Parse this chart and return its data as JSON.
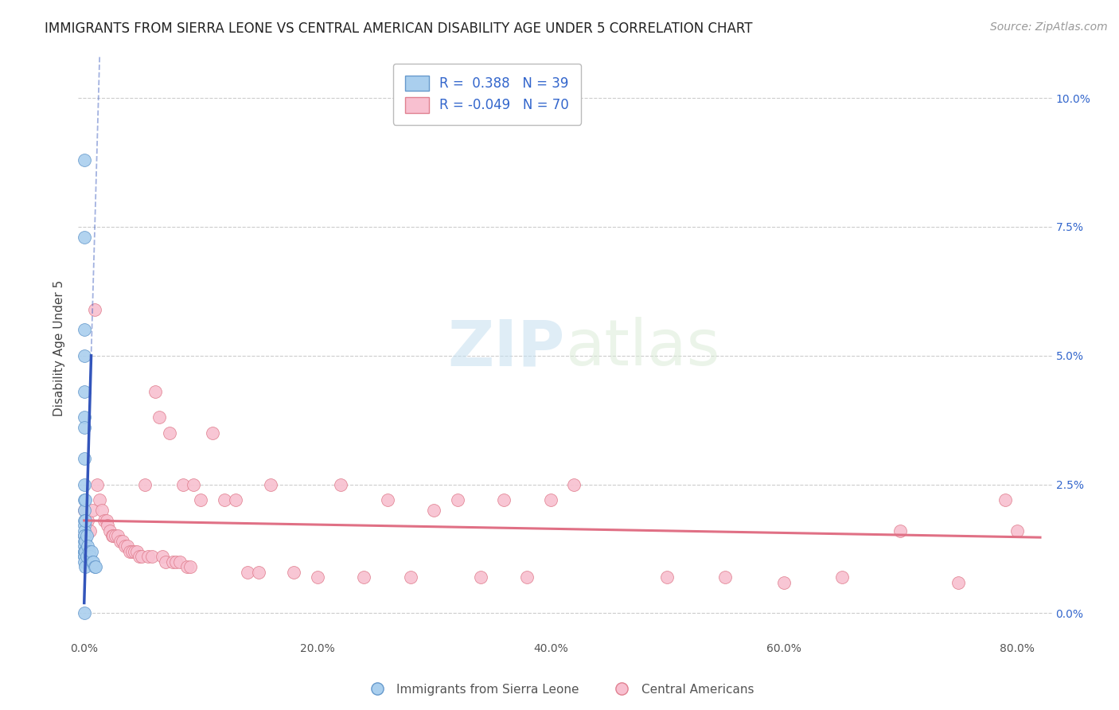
{
  "title": "IMMIGRANTS FROM SIERRA LEONE VS CENTRAL AMERICAN DISABILITY AGE UNDER 5 CORRELATION CHART",
  "source": "Source: ZipAtlas.com",
  "ylabel": "Disability Age Under 5",
  "xlim": [
    -0.005,
    0.83
  ],
  "ylim": [
    -0.005,
    0.108
  ],
  "blue_R": 0.388,
  "blue_N": 39,
  "pink_R": -0.049,
  "pink_N": 70,
  "legend1_label": "Immigrants from Sierra Leone",
  "legend2_label": "Central Americans",
  "background_color": "#ffffff",
  "grid_color": "#cccccc",
  "blue_color": "#aacfee",
  "blue_edge_color": "#6699cc",
  "blue_line_color": "#3355bb",
  "pink_color": "#f8c0d0",
  "pink_edge_color": "#e08090",
  "pink_line_color": "#e07085",
  "xtick_vals": [
    0.0,
    0.2,
    0.4,
    0.6,
    0.8
  ],
  "xtick_labels": [
    "0.0%",
    "20.0%",
    "40.0%",
    "60.0%",
    "80.0%"
  ],
  "ytick_vals": [
    0.0,
    0.025,
    0.05,
    0.075,
    0.1
  ],
  "ytick_labels": [
    "0.0%",
    "2.5%",
    "5.0%",
    "7.5%",
    "10.0%"
  ],
  "blue_scatter_x": [
    0.0,
    0.0,
    0.0,
    0.0,
    0.0,
    0.0,
    0.0,
    0.0,
    0.0,
    0.0,
    0.0,
    0.0,
    0.0,
    0.0,
    0.0,
    0.0,
    0.0,
    0.0,
    0.0,
    0.0,
    0.0,
    0.0,
    0.0,
    0.0,
    0.001,
    0.001,
    0.001,
    0.001,
    0.001,
    0.002,
    0.002,
    0.003,
    0.004,
    0.005,
    0.006,
    0.007,
    0.008,
    0.009,
    0.01
  ],
  "blue_scatter_y": [
    0.088,
    0.073,
    0.055,
    0.05,
    0.043,
    0.038,
    0.036,
    0.03,
    0.025,
    0.022,
    0.02,
    0.018,
    0.017,
    0.016,
    0.015,
    0.015,
    0.014,
    0.013,
    0.012,
    0.012,
    0.011,
    0.011,
    0.01,
    0.0,
    0.022,
    0.018,
    0.014,
    0.012,
    0.009,
    0.015,
    0.011,
    0.013,
    0.012,
    0.011,
    0.012,
    0.01,
    0.01,
    0.009,
    0.009
  ],
  "pink_scatter_x": [
    0.0,
    0.0,
    0.003,
    0.005,
    0.007,
    0.009,
    0.011,
    0.013,
    0.015,
    0.017,
    0.019,
    0.02,
    0.022,
    0.024,
    0.025,
    0.027,
    0.029,
    0.031,
    0.033,
    0.035,
    0.037,
    0.039,
    0.041,
    0.043,
    0.045,
    0.047,
    0.049,
    0.052,
    0.055,
    0.058,
    0.061,
    0.064,
    0.067,
    0.07,
    0.073,
    0.076,
    0.079,
    0.082,
    0.085,
    0.088,
    0.091,
    0.094,
    0.1,
    0.11,
    0.12,
    0.13,
    0.14,
    0.15,
    0.16,
    0.18,
    0.2,
    0.22,
    0.24,
    0.26,
    0.28,
    0.3,
    0.32,
    0.34,
    0.36,
    0.38,
    0.4,
    0.42,
    0.5,
    0.55,
    0.6,
    0.65,
    0.7,
    0.75,
    0.79,
    0.8
  ],
  "pink_scatter_y": [
    0.02,
    0.015,
    0.018,
    0.016,
    0.02,
    0.059,
    0.025,
    0.022,
    0.02,
    0.018,
    0.018,
    0.017,
    0.016,
    0.015,
    0.015,
    0.015,
    0.015,
    0.014,
    0.014,
    0.013,
    0.013,
    0.012,
    0.012,
    0.012,
    0.012,
    0.011,
    0.011,
    0.025,
    0.011,
    0.011,
    0.043,
    0.038,
    0.011,
    0.01,
    0.035,
    0.01,
    0.01,
    0.01,
    0.025,
    0.009,
    0.009,
    0.025,
    0.022,
    0.035,
    0.022,
    0.022,
    0.008,
    0.008,
    0.025,
    0.008,
    0.007,
    0.025,
    0.007,
    0.022,
    0.007,
    0.02,
    0.022,
    0.007,
    0.022,
    0.007,
    0.022,
    0.025,
    0.007,
    0.007,
    0.006,
    0.007,
    0.016,
    0.006,
    0.022,
    0.016
  ],
  "watermark_zip": "ZIP",
  "watermark_atlas": "atlas"
}
